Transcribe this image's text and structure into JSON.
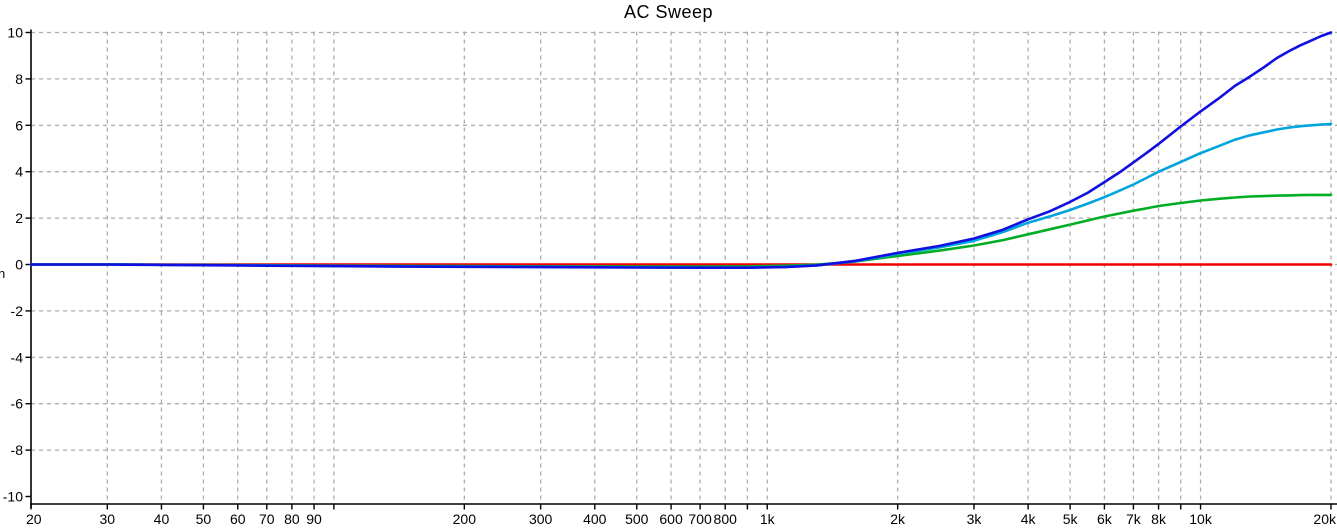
{
  "title": "AC Sweep",
  "y_axis_title_fragment": "n",
  "colors": {
    "background": "#ffffff",
    "axis": "#000000",
    "grid": "#ababab",
    "text": "#000000",
    "trace_red": "#f20000",
    "trace_green": "#00ad25",
    "trace_cyan": "#00a5de",
    "trace_blue": "#0f0fe0"
  },
  "chart_data": {
    "type": "line",
    "title": "AC Sweep",
    "xlabel": "",
    "ylabel": "",
    "x_scale": "log",
    "xlim": [
      20,
      20000
    ],
    "ylim": [
      -10,
      10
    ],
    "grid": "dashed",
    "legend_position": "none",
    "x_ticks": [
      {
        "f": 20,
        "label": "20"
      },
      {
        "f": 30,
        "label": "30"
      },
      {
        "f": 40,
        "label": "40"
      },
      {
        "f": 50,
        "label": "50"
      },
      {
        "f": 60,
        "label": "60"
      },
      {
        "f": 70,
        "label": "70"
      },
      {
        "f": 80,
        "label": "80"
      },
      {
        "f": 90,
        "label": "90"
      },
      {
        "f": 100,
        "label": ""
      },
      {
        "f": 200,
        "label": "200"
      },
      {
        "f": 300,
        "label": "300"
      },
      {
        "f": 400,
        "label": "400"
      },
      {
        "f": 500,
        "label": "500"
      },
      {
        "f": 600,
        "label": "600"
      },
      {
        "f": 700,
        "label": "700"
      },
      {
        "f": 800,
        "label": "800"
      },
      {
        "f": 900,
        "label": ""
      },
      {
        "f": 1000,
        "label": "1k"
      },
      {
        "f": 2000,
        "label": "2k"
      },
      {
        "f": 3000,
        "label": "3k"
      },
      {
        "f": 4000,
        "label": "4k"
      },
      {
        "f": 5000,
        "label": "5k"
      },
      {
        "f": 6000,
        "label": "6k"
      },
      {
        "f": 7000,
        "label": "7k"
      },
      {
        "f": 8000,
        "label": "8k"
      },
      {
        "f": 9000,
        "label": ""
      },
      {
        "f": 10000,
        "label": "10k"
      },
      {
        "f": 20000,
        "label": "20k"
      }
    ],
    "y_ticks": [
      {
        "v": 10,
        "label": "10"
      },
      {
        "v": 8,
        "label": "8"
      },
      {
        "v": 6,
        "label": "6"
      },
      {
        "v": 4,
        "label": "4"
      },
      {
        "v": 2,
        "label": "2"
      },
      {
        "v": 0,
        "label": "0"
      },
      {
        "v": -2,
        "label": "-2"
      },
      {
        "v": -4,
        "label": "-4"
      },
      {
        "v": -6,
        "label": "-6"
      },
      {
        "v": -8,
        "label": "-8"
      },
      {
        "v": -10,
        "label": "-10"
      }
    ],
    "x": [
      20,
      30,
      50,
      70,
      100,
      150,
      200,
      300,
      400,
      500,
      700,
      900,
      1100,
      1300,
      1600,
      2000,
      2500,
      3000,
      3500,
      4000,
      4500,
      5000,
      5500,
      6000,
      6500,
      7000,
      7500,
      8000,
      9000,
      10000,
      11000,
      12000,
      13000,
      14000,
      15000,
      16000,
      17000,
      18000,
      19000,
      20000
    ],
    "series": [
      {
        "name": "trace-red",
        "color": "#f20000",
        "values": [
          0,
          0,
          0,
          0,
          0,
          0,
          0,
          0,
          0,
          0,
          0,
          0,
          0,
          0,
          0,
          0,
          0,
          0,
          0,
          0,
          0,
          0,
          0,
          0,
          0,
          0,
          0,
          0,
          0,
          0,
          0,
          0,
          0,
          0,
          0,
          0,
          0,
          0,
          0,
          0
        ]
      },
      {
        "name": "trace-green",
        "color": "#00ad25",
        "values": [
          0,
          0,
          -0.02,
          -0.03,
          -0.05,
          -0.06,
          -0.07,
          -0.08,
          -0.08,
          -0.09,
          -0.09,
          -0.08,
          -0.05,
          -0.01,
          0.13,
          0.37,
          0.6,
          0.82,
          1.05,
          1.3,
          1.52,
          1.72,
          1.9,
          2.07,
          2.2,
          2.32,
          2.42,
          2.52,
          2.65,
          2.76,
          2.83,
          2.89,
          2.93,
          2.95,
          2.97,
          2.98,
          2.99,
          3.0,
          3.0,
          3.0
        ]
      },
      {
        "name": "trace-cyan",
        "color": "#00a5de",
        "values": [
          0,
          0,
          -0.02,
          -0.04,
          -0.06,
          -0.08,
          -0.09,
          -0.1,
          -0.11,
          -0.12,
          -0.13,
          -0.13,
          -0.1,
          -0.04,
          0.14,
          0.46,
          0.74,
          1.02,
          1.4,
          1.8,
          2.08,
          2.35,
          2.63,
          2.9,
          3.18,
          3.45,
          3.73,
          4.0,
          4.42,
          4.8,
          5.1,
          5.38,
          5.57,
          5.7,
          5.82,
          5.9,
          5.96,
          6.0,
          6.03,
          6.05
        ]
      },
      {
        "name": "trace-blue",
        "color": "#0f0fe0",
        "values": [
          0,
          0,
          -0.03,
          -0.05,
          -0.07,
          -0.09,
          -0.1,
          -0.11,
          -0.12,
          -0.13,
          -0.14,
          -0.14,
          -0.11,
          -0.04,
          0.16,
          0.5,
          0.8,
          1.12,
          1.5,
          1.95,
          2.3,
          2.7,
          3.1,
          3.55,
          3.97,
          4.4,
          4.8,
          5.2,
          5.95,
          6.6,
          7.15,
          7.7,
          8.1,
          8.5,
          8.9,
          9.2,
          9.45,
          9.65,
          9.85,
          10.0
        ]
      }
    ]
  }
}
